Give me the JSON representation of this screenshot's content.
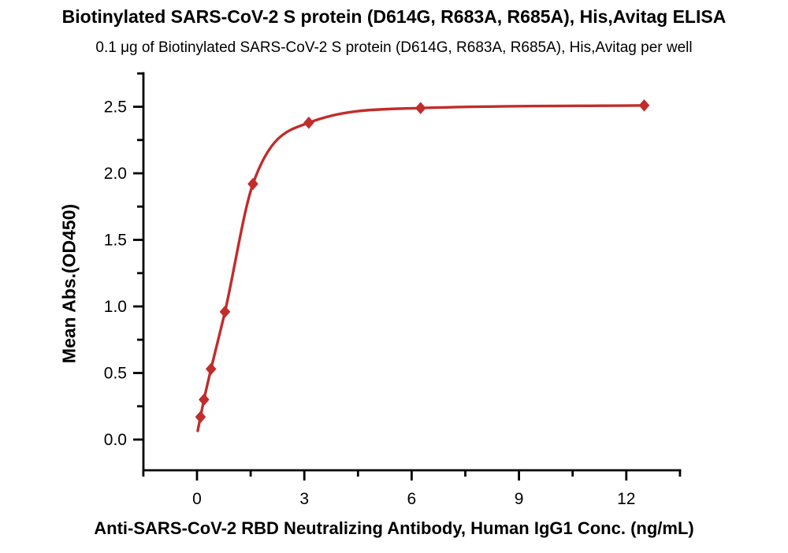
{
  "chart_data": {
    "type": "scatter",
    "title": "Biotinylated SARS-CoV-2 S protein (D614G, R683A, R685A), His,Avitag ELISA",
    "subtitle": "0.1 μg of Biotinylated SARS-CoV-2 S protein (D614G, R683A, R685A), His,Avitag per well",
    "xlabel": "Anti-SARS-CoV-2 RBD Neutralizing Antibody, Human IgG1 Conc. (ng/mL)",
    "ylabel": "Mean Abs.(OD450)",
    "x": [
      0.098,
      0.195,
      0.391,
      0.781,
      1.563,
      3.125,
      6.25,
      12.5
    ],
    "y": [
      0.17,
      0.3,
      0.53,
      0.96,
      1.92,
      2.38,
      2.49,
      2.51
    ],
    "xlim": [
      -1.5,
      13.5
    ],
    "ylim": [
      -0.25,
      2.75
    ],
    "x_major_ticks": [
      0,
      3,
      6,
      9,
      12
    ],
    "x_tick_labels": [
      "0",
      "3",
      "6",
      "9",
      "12"
    ],
    "x_minor_step": 1.5,
    "y_major_ticks": [
      0.0,
      0.5,
      1.0,
      1.5,
      2.0,
      2.5
    ],
    "y_tick_labels": [
      "0.0",
      "0.5",
      "1.0",
      "1.5",
      "2.0",
      "2.5"
    ],
    "y_minor_step": 0.25,
    "grid": false,
    "legend": "none",
    "marker": "diamond",
    "curve": "4PL sigmoidal fit",
    "colors": {
      "curve": "#C02D2B",
      "marker": "#C02D2B",
      "axis": "#000000",
      "text": "#000000",
      "background": "#FFFFFF"
    }
  }
}
